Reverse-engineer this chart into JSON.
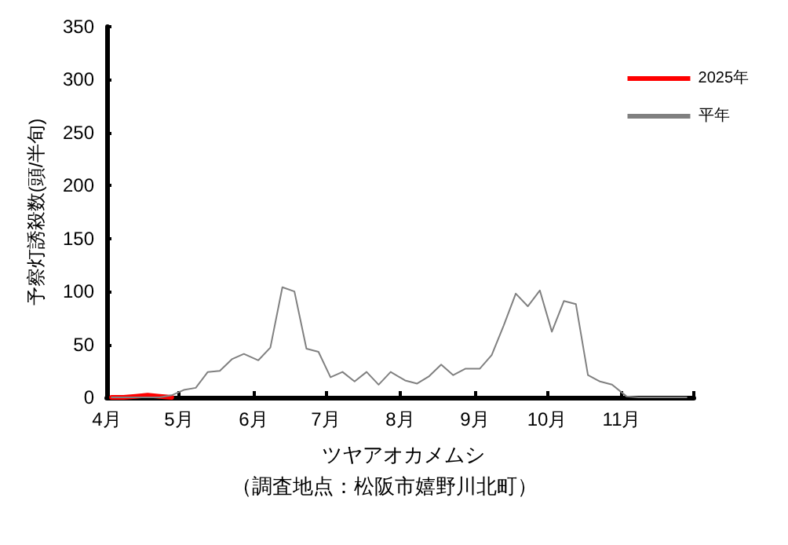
{
  "chart_data": {
    "type": "line",
    "title": "ツヤアオカメムシ",
    "annotations": [
      "（調査地点：松阪市嬉野川北町）"
    ],
    "ylabel": "予察灯誘殺数(頭/半旬)",
    "x": [
      "--04-03",
      "--04-08",
      "--04-13",
      "--04-18",
      "--04-23",
      "--04-28",
      "--05-03",
      "--05-08",
      "--05-13",
      "--05-18",
      "--05-23",
      "--05-28",
      "--06-03",
      "--06-08",
      "--06-13",
      "--06-18",
      "--06-23",
      "--06-28",
      "--07-03",
      "--07-08",
      "--07-13",
      "--07-18",
      "--07-23",
      "--07-28",
      "--08-03",
      "--08-08",
      "--08-13",
      "--08-18",
      "--08-23",
      "--08-28",
      "--09-03",
      "--09-08",
      "--09-13",
      "--09-18",
      "--09-23",
      "--09-28",
      "--10-03",
      "--10-08",
      "--10-13",
      "--10-18",
      "--10-23",
      "--10-28",
      "--11-03",
      "--11-08",
      "--11-13",
      "--11-18",
      "--11-23",
      "--11-28"
    ],
    "series": [
      {
        "name": "2025年",
        "color": "#ff0000",
        "values": [
          0,
          0,
          1,
          2,
          1,
          0,
          null,
          null,
          null,
          null,
          null,
          null,
          null,
          null,
          null,
          null,
          null,
          null,
          null,
          null,
          null,
          null,
          null,
          null,
          null,
          null,
          null,
          null,
          null,
          null,
          null,
          null,
          null,
          null,
          null,
          null,
          null,
          null,
          null,
          null,
          null,
          null,
          null,
          null,
          null,
          null,
          null,
          null
        ]
      },
      {
        "name": "平年",
        "color": "#808080",
        "values": [
          0,
          0,
          0,
          0,
          0,
          2,
          7,
          9,
          24,
          25,
          36,
          41,
          35,
          47,
          104,
          100,
          46,
          43,
          19,
          24,
          15,
          24,
          12,
          24,
          16,
          13,
          20,
          31,
          21,
          27,
          27,
          40,
          68,
          98,
          86,
          101,
          62,
          91,
          88,
          21,
          15,
          12,
          1,
          0,
          0,
          0,
          0,
          0
        ]
      }
    ],
    "xlim": [
      "--04-01",
      "--12-01"
    ],
    "xticks": [
      {
        "value": "--04-01",
        "label": "4月"
      },
      {
        "value": "--05-01",
        "label": "5月"
      },
      {
        "value": "--06-01",
        "label": "6月"
      },
      {
        "value": "--07-01",
        "label": "7月"
      },
      {
        "value": "--08-01",
        "label": "8月"
      },
      {
        "value": "--09-01",
        "label": "9月"
      },
      {
        "value": "--10-01",
        "label": "10月"
      },
      {
        "value": "--11-01",
        "label": "11月"
      },
      {
        "value": "--12-01",
        "label": null
      }
    ],
    "ylim": [
      0,
      350
    ],
    "yticks": [
      0,
      50,
      100,
      150,
      200,
      250,
      300,
      350
    ],
    "grid": false,
    "legend": "top right",
    "marker": "none",
    "line_style": "solid"
  }
}
